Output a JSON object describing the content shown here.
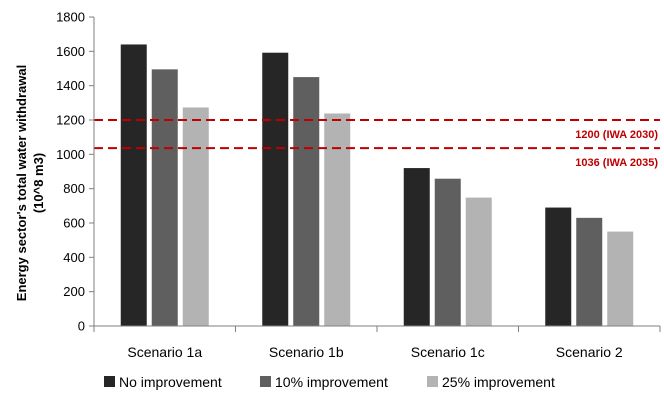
{
  "chart_data": {
    "type": "bar",
    "title": "",
    "xlabel": "",
    "ylabel": [
      "Energy sector's total water withdrawal",
      "(10^8 m3)"
    ],
    "ylim": [
      0,
      1800
    ],
    "yticks": [
      0,
      200,
      400,
      600,
      800,
      1000,
      1200,
      1400,
      1600,
      1800
    ],
    "categories": [
      "Scenario 1a",
      "Scenario 1b",
      "Scenario 1c",
      "Scenario 2"
    ],
    "series": [
      {
        "name": "No improvement",
        "color": "#262626",
        "values": [
          1640,
          1592,
          920,
          690
        ]
      },
      {
        "name": "10% improvement",
        "color": "#5f5f5f",
        "values": [
          1495,
          1450,
          858,
          630
        ]
      },
      {
        "name": "25% improvement",
        "color": "#b3b3b3",
        "values": [
          1273,
          1238,
          748,
          550
        ]
      }
    ],
    "reference_lines": [
      {
        "value": 1200,
        "label": "1200 (IWA 2030)",
        "color": "#c00000",
        "style": "dashed"
      },
      {
        "value": 1036,
        "label": "1036 (IWA 2035)",
        "color": "#c00000",
        "style": "dashed"
      }
    ],
    "grid": false,
    "legend_position": "bottom"
  }
}
